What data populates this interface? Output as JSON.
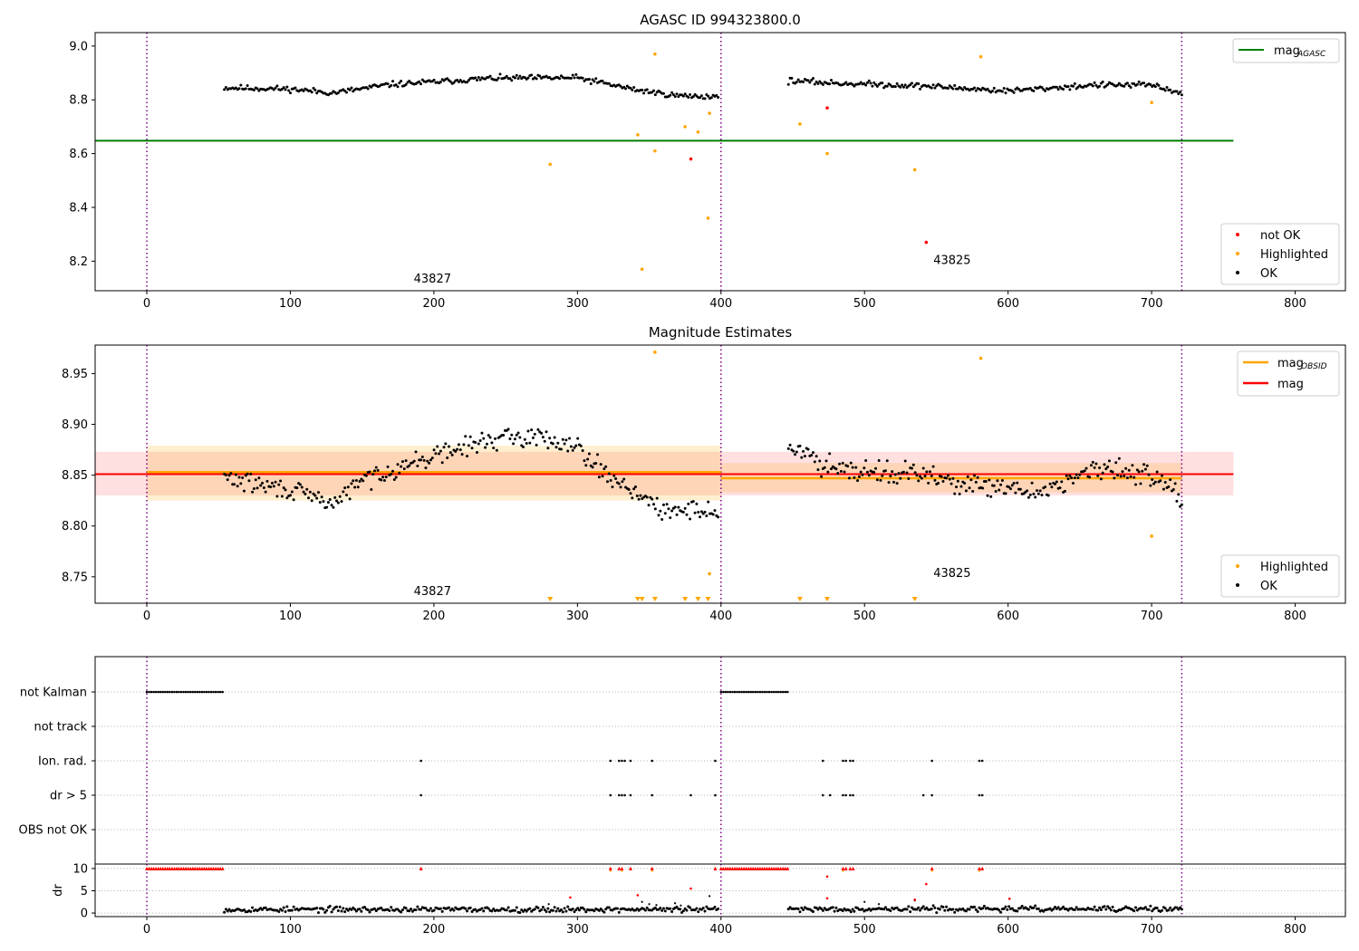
{
  "figure": {
    "title_top": "AGASC ID 994323800.0",
    "title_mid": "Magnitude Estimates",
    "colors": {
      "ok": "#000000",
      "highlighted": "#ffa500",
      "not_ok": "#ff0000",
      "mag_agasc": "#008000",
      "mag_obsid": "#ffa500",
      "mag": "#ff0000",
      "boundary": "#800080",
      "band_obsid": "#ffa500",
      "band_mag": "#ff0000"
    }
  },
  "chart_data": [
    {
      "type": "scatter",
      "title": "AGASC ID 994323800.0",
      "xlim": [
        -36,
        835
      ],
      "ylim": [
        8.09,
        9.05
      ],
      "xticks": [
        0,
        100,
        200,
        300,
        400,
        500,
        600,
        700,
        800
      ],
      "yticks": [
        8.2,
        8.4,
        8.6,
        8.8,
        9.0
      ],
      "ytick_labels": [
        "8.2",
        "8.4",
        "8.6",
        "8.8",
        "9.0"
      ],
      "obsid_boundaries": [
        0,
        400,
        721
      ],
      "obsid_labels": [
        {
          "text": "43827",
          "x": 199,
          "y": 8.12
        },
        {
          "text": "43825",
          "x": 561,
          "y": 8.19
        }
      ],
      "lines": [
        {
          "name": "mag",
          "sub": "AGASC",
          "y": 8.648,
          "x_range": [
            -36,
            757
          ]
        }
      ],
      "ok_segments": [
        {
          "x_start": 54,
          "x_end": 398,
          "n": 300,
          "y_base": [
            [
              54,
              8.845
            ],
            [
              100,
              8.84
            ],
            [
              130,
              8.826
            ],
            [
              170,
              8.857
            ],
            [
              240,
              8.88
            ],
            [
              300,
              8.882
            ],
            [
              340,
              8.838
            ],
            [
              370,
              8.815
            ],
            [
              398,
              8.812
            ]
          ],
          "jitter": 0.008
        },
        {
          "x_start": 447,
          "x_end": 721,
          "n": 240,
          "y_base": [
            [
              447,
              8.871
            ],
            [
              480,
              8.862
            ],
            [
              540,
              8.852
            ],
            [
              600,
              8.833
            ],
            [
              660,
              8.855
            ],
            [
              700,
              8.855
            ],
            [
              721,
              8.825
            ]
          ],
          "jitter": 0.008
        }
      ],
      "highlighted": [
        [
          281,
          8.56
        ],
        [
          342,
          8.67
        ],
        [
          345,
          8.17
        ],
        [
          354,
          8.97
        ],
        [
          354,
          8.61
        ],
        [
          375,
          8.7
        ],
        [
          384,
          8.68
        ],
        [
          391,
          8.36
        ],
        [
          392,
          8.75
        ],
        [
          455,
          8.71
        ],
        [
          474,
          8.6
        ],
        [
          535,
          8.54
        ],
        [
          581,
          8.96
        ],
        [
          700,
          8.79
        ]
      ],
      "not_ok": [
        [
          379,
          8.58
        ],
        [
          474,
          8.77
        ],
        [
          543,
          8.27
        ]
      ],
      "legend_top": [
        {
          "label": "mag",
          "sub": "AGASC",
          "color": "#008000"
        }
      ],
      "legend_bottom": [
        {
          "label": "not OK",
          "color": "#ff0000"
        },
        {
          "label": "Highlighted",
          "color": "#ffa500"
        },
        {
          "label": "OK",
          "color": "#000000"
        }
      ]
    },
    {
      "type": "scatter",
      "title": "Magnitude Estimates",
      "xlim": [
        -36,
        835
      ],
      "ylim": [
        8.724,
        8.978
      ],
      "xticks": [
        0,
        100,
        200,
        300,
        400,
        500,
        600,
        700,
        800
      ],
      "yticks": [
        8.75,
        8.8,
        8.85,
        8.9,
        8.95
      ],
      "ytick_labels": [
        "8.75",
        "8.80",
        "8.85",
        "8.90",
        "8.95"
      ],
      "obsid_boundaries": [
        0,
        400,
        721
      ],
      "obsid_labels": [
        {
          "text": "43827",
          "x": 199,
          "y": 8.732
        },
        {
          "text": "43825",
          "x": 561,
          "y": 8.75
        }
      ],
      "mag": {
        "name": "mag",
        "y": 8.851,
        "band": [
          8.83,
          8.873
        ],
        "x_range": [
          -36,
          757
        ]
      },
      "mag_obsid": [
        {
          "x_range": [
            0,
            400
          ],
          "y": 8.853,
          "band": [
            8.825,
            8.879
          ]
        },
        {
          "x_range": [
            400,
            721
          ],
          "y": 8.847,
          "band": [
            8.833,
            8.862
          ]
        }
      ],
      "ok_segments": [
        {
          "x_start": 54,
          "x_end": 398,
          "n": 300,
          "y_base": [
            [
              54,
              8.848
            ],
            [
              80,
              8.84
            ],
            [
              100,
              8.835
            ],
            [
              130,
              8.822
            ],
            [
              150,
              8.845
            ],
            [
              180,
              8.86
            ],
            [
              210,
              8.873
            ],
            [
              240,
              8.885
            ],
            [
              270,
              8.888
            ],
            [
              300,
              8.88
            ],
            [
              320,
              8.85
            ],
            [
              340,
              8.835
            ],
            [
              360,
              8.812
            ],
            [
              380,
              8.818
            ],
            [
              398,
              8.812
            ]
          ],
          "jitter": 0.007
        },
        {
          "x_start": 447,
          "x_end": 721,
          "n": 240,
          "y_base": [
            [
              447,
              8.878
            ],
            [
              470,
              8.862
            ],
            [
              500,
              8.855
            ],
            [
              540,
              8.85
            ],
            [
              580,
              8.838
            ],
            [
              620,
              8.833
            ],
            [
              660,
              8.855
            ],
            [
              700,
              8.852
            ],
            [
              721,
              8.828
            ]
          ],
          "jitter": 0.008
        }
      ],
      "highlighted": [
        [
          354,
          8.971
        ],
        [
          392,
          8.753
        ],
        [
          581,
          8.965
        ],
        [
          700,
          8.79
        ]
      ],
      "offscale_markers_x": [
        281,
        342,
        345,
        354,
        375,
        384,
        391,
        455,
        474,
        535
      ],
      "legend_top": [
        {
          "label": "mag",
          "sub": "OBSID",
          "color": "#ffa500"
        },
        {
          "label": "mag",
          "sub": "",
          "color": "#ff0000"
        }
      ],
      "legend_bottom": [
        {
          "label": "Highlighted",
          "color": "#ffa500"
        },
        {
          "label": "OK",
          "color": "#000000"
        }
      ]
    },
    {
      "type": "scatter",
      "title": "",
      "xlim": [
        -36,
        835
      ],
      "rows": [
        "not Kalman",
        "not track",
        "Ion. rad.",
        "dr > 5",
        "OBS not OK"
      ],
      "obsid_boundaries": [
        0,
        400,
        721
      ],
      "flags": {
        "not Kalman": {
          "ranges": [
            [
              0,
              54
            ],
            [
              400,
              447
            ]
          ],
          "step": 1.6
        },
        "not track": {
          "ranges": [],
          "points": []
        },
        "Ion. rad.": {
          "points": [
            191,
            323,
            329,
            331,
            333,
            337,
            352,
            396,
            471,
            485,
            487,
            490,
            492,
            547,
            580,
            582
          ]
        },
        "dr > 5": {
          "points": [
            191,
            323,
            329,
            331,
            333,
            337,
            352,
            379,
            396,
            471,
            476,
            485,
            487,
            490,
            492,
            541,
            547,
            580,
            582
          ]
        },
        "OBS not OK": {
          "points": []
        }
      }
    },
    {
      "type": "scatter",
      "title": "",
      "ylabel": "dr",
      "xlim": [
        -36,
        835
      ],
      "ylim": [
        -0.8,
        11.0
      ],
      "xticks": [
        0,
        100,
        200,
        300,
        400,
        500,
        600,
        700,
        800
      ],
      "yticks": [
        0,
        5,
        10
      ],
      "ytick_labels": [
        "0",
        "5",
        "10"
      ],
      "obsid_boundaries": [
        0,
        400,
        721
      ],
      "ok_segments": [
        {
          "x_start": 54,
          "x_end": 398,
          "n": 300,
          "y_mean": 0.8,
          "jitter": 0.45
        },
        {
          "x_start": 447,
          "x_end": 721,
          "n": 240,
          "y_mean": 0.9,
          "jitter": 0.45
        }
      ],
      "clipped_red_ranges": [
        [
          0,
          54
        ],
        [
          400,
          447
        ]
      ],
      "clipped_red_points": [
        191,
        323,
        329,
        331,
        337,
        352,
        396,
        485,
        487,
        490,
        492,
        547,
        580,
        582
      ],
      "red_points": [
        [
          295,
          3.5
        ],
        [
          342,
          4.0
        ],
        [
          379,
          5.5
        ],
        [
          474,
          8.2
        ],
        [
          474,
          3.3
        ],
        [
          535,
          3.0
        ],
        [
          543,
          6.5
        ],
        [
          601,
          3.2
        ]
      ],
      "highlight_marks": [
        [
          323,
          10
        ],
        [
          331,
          10
        ],
        [
          352,
          10
        ],
        [
          485,
          10
        ],
        [
          547,
          10
        ],
        [
          580,
          10
        ]
      ],
      "outlier_black": [
        [
          280,
          2.0
        ],
        [
          345,
          2.5
        ],
        [
          350,
          2.0
        ],
        [
          355,
          1.8
        ],
        [
          368,
          2.2
        ],
        [
          372,
          1.7
        ],
        [
          392,
          3.8
        ],
        [
          500,
          2.5
        ],
        [
          510,
          2.0
        ],
        [
          535,
          2.8
        ]
      ]
    }
  ]
}
